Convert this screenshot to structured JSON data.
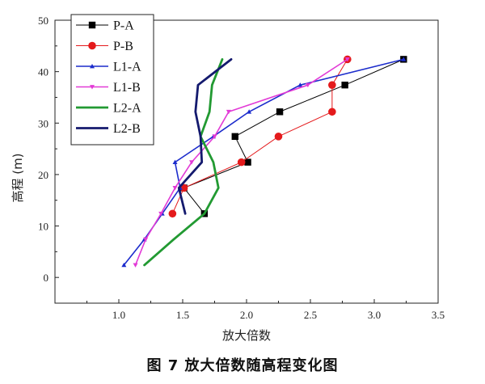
{
  "caption": "图 7  放大倍数随高程变化图",
  "chart_data": {
    "type": "line",
    "xlabel": "放大倍数",
    "ylabel": "高程 (m)",
    "xlim": [
      0.5,
      3.5
    ],
    "ylim": [
      -5,
      50
    ],
    "xticks": [
      "1.0",
      "1.5",
      "2.0",
      "2.5",
      "3.0",
      "3.5"
    ],
    "xtick_values": [
      1.0,
      1.5,
      2.0,
      2.5,
      3.0,
      3.5
    ],
    "yticks": [
      "0",
      "10",
      "20",
      "30",
      "40",
      "50"
    ],
    "ytick_values": [
      0,
      10,
      20,
      30,
      40,
      50
    ],
    "grid": false,
    "legend_position": "top-left",
    "series": [
      {
        "name": "P-A",
        "color": "#000000",
        "marker": "square",
        "line_width": 1,
        "points": [
          [
            1.67,
            12.4
          ],
          [
            1.51,
            17.4
          ],
          [
            2.01,
            22.4
          ],
          [
            1.91,
            27.4
          ],
          [
            2.26,
            32.2
          ],
          [
            2.77,
            37.4
          ],
          [
            3.23,
            42.4
          ]
        ]
      },
      {
        "name": "P-B",
        "color": "#e41a1c",
        "marker": "circle",
        "line_width": 1,
        "points": [
          [
            1.42,
            12.4
          ],
          [
            1.51,
            17.4
          ],
          [
            1.96,
            22.4
          ],
          [
            2.25,
            27.4
          ],
          [
            2.67,
            32.2
          ],
          [
            2.67,
            37.4
          ],
          [
            2.79,
            42.4
          ]
        ]
      },
      {
        "name": "L1-A",
        "color": "#1c2ccc",
        "marker": "triangle-up",
        "line_width": 1.6,
        "points": [
          [
            1.04,
            2.4
          ],
          [
            1.2,
            7.4
          ],
          [
            1.34,
            12.4
          ],
          [
            1.48,
            17.4
          ],
          [
            1.44,
            22.4
          ],
          [
            1.74,
            27.4
          ],
          [
            2.02,
            32.2
          ],
          [
            2.42,
            37.4
          ],
          [
            3.23,
            42.4
          ]
        ]
      },
      {
        "name": "L1-B",
        "color": "#e23ad6",
        "marker": "triangle-down",
        "line_width": 1.6,
        "points": [
          [
            1.13,
            2.4
          ],
          [
            1.21,
            7.4
          ],
          [
            1.33,
            12.4
          ],
          [
            1.44,
            17.4
          ],
          [
            1.57,
            22.4
          ],
          [
            1.75,
            27.4
          ],
          [
            1.86,
            32.2
          ],
          [
            2.48,
            37.4
          ],
          [
            2.79,
            42.4
          ]
        ]
      },
      {
        "name": "L2-A",
        "color": "#229a32",
        "marker": "none",
        "line_width": 2.8,
        "points": [
          [
            1.2,
            2.4
          ],
          [
            1.43,
            7.4
          ],
          [
            1.67,
            12.4
          ],
          [
            1.78,
            17.4
          ],
          [
            1.74,
            22.4
          ],
          [
            1.64,
            27.4
          ],
          [
            1.71,
            32.2
          ],
          [
            1.73,
            37.4
          ],
          [
            1.81,
            42.4
          ]
        ]
      },
      {
        "name": "L2-B",
        "color": "#141a6e",
        "marker": "none",
        "line_width": 2.8,
        "points": [
          [
            1.52,
            12.4
          ],
          [
            1.47,
            17.4
          ],
          [
            1.65,
            22.4
          ],
          [
            1.64,
            27.4
          ],
          [
            1.6,
            32.2
          ],
          [
            1.62,
            37.4
          ],
          [
            1.88,
            42.4
          ]
        ]
      }
    ]
  }
}
